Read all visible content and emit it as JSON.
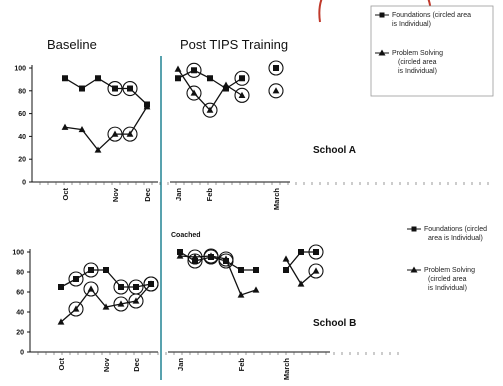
{
  "chart_data": [
    {
      "type": "line",
      "title": "School A",
      "phase_labels": [
        "Baseline",
        "Post TIPS Training"
      ],
      "x_tick_labels": [
        "Oct",
        "Nov",
        "Dec",
        "Jan",
        "Feb",
        "March"
      ],
      "x_annotation": "Coached",
      "yticks": [
        0,
        20,
        40,
        60,
        80,
        100
      ],
      "ylim": [
        0,
        100
      ],
      "series": [
        {
          "name": "Foundations (circled area is Individual)",
          "marker": "square",
          "segments": [
            {
              "x": [
                "Oct 1",
                "Oct 3",
                "Oct 5",
                "Nov 1",
                "Nov 3",
                "Dec 1"
              ],
              "y": [
                91,
                82,
                91,
                82,
                82,
                68
              ]
            },
            {
              "x": [
                "Jan 1",
                "Jan 3",
                "Jan 5",
                "Feb 1",
                "Feb 3"
              ],
              "y": [
                91,
                98,
                91,
                82,
                91
              ]
            },
            {
              "x": [
                "March 1"
              ],
              "y": [
                100
              ]
            }
          ],
          "circled": [
            [
              "Nov 1",
              82
            ],
            [
              "Nov 3",
              82
            ],
            [
              "Jan 3",
              98
            ],
            [
              "Feb 3",
              91
            ],
            [
              "March 1",
              100
            ]
          ]
        },
        {
          "name": "Problem Solving (circled area is Individual)",
          "marker": "triangle",
          "segments": [
            {
              "x": [
                "Oct 1",
                "Oct 3",
                "Oct 5",
                "Nov 1",
                "Nov 3",
                "Dec 1"
              ],
              "y": [
                48,
                46,
                28,
                42,
                42,
                66
              ]
            },
            {
              "x": [
                "Jan 1",
                "Jan 3",
                "Jan 5",
                "Feb 1",
                "Feb 3"
              ],
              "y": [
                99,
                78,
                63,
                85,
                76
              ]
            },
            {
              "x": [
                "March 1"
              ],
              "y": [
                80
              ]
            }
          ],
          "circled": [
            [
              "Nov 1",
              42
            ],
            [
              "Nov 3",
              42
            ],
            [
              "Jan 3",
              78
            ],
            [
              "Jan 5",
              63
            ],
            [
              "Feb 3",
              76
            ],
            [
              "March 1",
              80
            ]
          ]
        }
      ],
      "legend_placement": "top-right"
    },
    {
      "type": "line",
      "title": "School B",
      "x_tick_labels": [
        "Oct",
        "Nov",
        "Dec",
        "Jan",
        "Feb",
        "March"
      ],
      "yticks": [
        0,
        20,
        40,
        60,
        80,
        100
      ],
      "ylim": [
        0,
        100
      ],
      "series": [
        {
          "name": "Foundations (circled area is Individual)",
          "marker": "square",
          "segments": [
            {
              "x": [
                "Oct 1",
                "Oct 3",
                "Oct 5",
                "Nov 1",
                "Nov 3",
                "Dec 1",
                "Dec 3"
              ],
              "y": [
                65,
                73,
                82,
                82,
                65,
                65,
                68
              ]
            },
            {
              "x": [
                "Jan 1",
                "Jan 3",
                "Jan 5",
                "Feb 1",
                "Feb 3",
                "Feb 5"
              ],
              "y": [
                100,
                91,
                95,
                91,
                82,
                82
              ]
            },
            {
              "x": [
                "March 1",
                "March 3",
                "March 5"
              ],
              "y": [
                82,
                100,
                100
              ]
            }
          ],
          "circled": [
            [
              "Oct 3",
              73
            ],
            [
              "Oct 5",
              82
            ],
            [
              "Nov 3",
              65
            ],
            [
              "Dec 1",
              65
            ],
            [
              "Dec 3",
              68
            ],
            [
              "Jan 3",
              91
            ],
            [
              "Jan 5",
              95
            ],
            [
              "Feb 1",
              91
            ],
            [
              "March 5",
              100
            ]
          ]
        },
        {
          "name": "Problem Solving (circled area is Individual)",
          "marker": "triangle",
          "segments": [
            {
              "x": [
                "Oct 1",
                "Oct 3",
                "Oct 5",
                "Nov 1",
                "Nov 3",
                "Dec 1",
                "Dec 3"
              ],
              "y": [
                30,
                43,
                63,
                45,
                48,
                51,
                68
              ]
            },
            {
              "x": [
                "Jan 1",
                "Jan 3",
                "Jan 5",
                "Feb 1",
                "Feb 3",
                "Feb 5"
              ],
              "y": [
                96,
                95,
                96,
                93,
                57,
                62
              ]
            },
            {
              "x": [
                "March 1",
                "March 3",
                "March 5"
              ],
              "y": [
                93,
                68,
                81
              ]
            }
          ],
          "circled": [
            [
              "Oct 3",
              43
            ],
            [
              "Oct 5",
              63
            ],
            [
              "Nov 3",
              48
            ],
            [
              "Dec 1",
              51
            ],
            [
              "Dec 3",
              68
            ],
            [
              "Jan 3",
              95
            ],
            [
              "Jan 5",
              96
            ],
            [
              "Feb 1",
              93
            ],
            [
              "March 5",
              81
            ]
          ]
        }
      ],
      "legend_placement": "right"
    }
  ],
  "colors": {
    "phase_line": "#2e8b9a",
    "series": "#111111",
    "circle": "#111111"
  }
}
